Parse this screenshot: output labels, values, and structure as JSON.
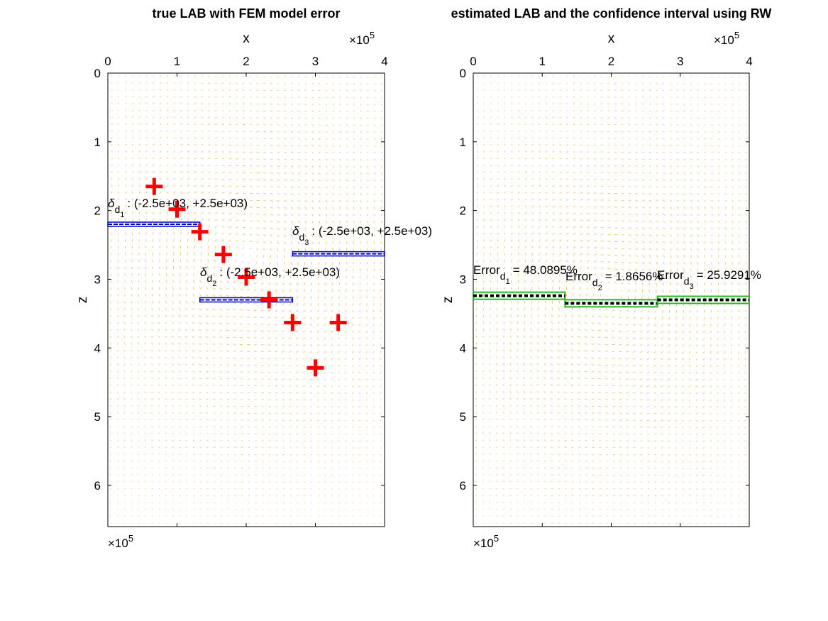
{
  "chart_data": [
    {
      "type": "scatter",
      "title": "true LAB with FEM model error",
      "xlabel": "x",
      "ylabel": "z",
      "x_exponent": "×10",
      "x_exponent_power": "5",
      "y_exponent": "×10",
      "y_exponent_power": "5",
      "xlim": [
        0,
        4
      ],
      "ylim": [
        0,
        6.6
      ],
      "y_reversed": true,
      "x_axis_location": "top",
      "xticks": [
        0,
        1,
        2,
        3,
        4
      ],
      "yticks": [
        0,
        1,
        2,
        3,
        4,
        5,
        6
      ],
      "xtick_labels": [
        "0",
        "1",
        "2",
        "3",
        "4"
      ],
      "ytick_labels": [
        "0",
        "1",
        "2",
        "3",
        "4",
        "5",
        "6"
      ],
      "vector_field": {
        "color": "#e8a317",
        "x_center": 2.0,
        "z_center": 2.7
      },
      "markers": {
        "symbol": "+",
        "color": "#ff0000",
        "points": [
          {
            "x": 0.67,
            "z": 1.65
          },
          {
            "x": 1.0,
            "z": 1.98
          },
          {
            "x": 1.33,
            "z": 2.31
          },
          {
            "x": 1.67,
            "z": 2.64
          },
          {
            "x": 2.0,
            "z": 2.97
          },
          {
            "x": 2.33,
            "z": 3.3
          },
          {
            "x": 2.67,
            "z": 3.63
          },
          {
            "x": 3.33,
            "z": 3.63
          },
          {
            "x": 3.0,
            "z": 4.29
          }
        ]
      },
      "segments": [
        {
          "x0": 0.0,
          "x1": 1.33,
          "z": 2.2,
          "color": "#0000cc",
          "label": {
            "symbol": "δ",
            "sub": "d",
            "subsub": "1",
            "text": ": (-2.5e+03, +2.5e+03)"
          }
        },
        {
          "x0": 1.33,
          "x1": 2.67,
          "z": 3.3,
          "color": "#0000cc",
          "label": {
            "symbol": "δ",
            "sub": "d",
            "subsub": "2",
            "text": ": (-2.5e+03, +2.5e+03)"
          }
        },
        {
          "x0": 2.67,
          "x1": 4.0,
          "z": 2.63,
          "color": "#0000cc",
          "label": {
            "symbol": "δ",
            "sub": "d",
            "subsub": "3",
            "text": ": (-2.5e+03, +2.5e+03)"
          }
        }
      ]
    },
    {
      "type": "line",
      "title": "estimated LAB and the confidence interval using RW",
      "xlabel": "x",
      "ylabel": "z",
      "x_exponent": "×10",
      "x_exponent_power": "5",
      "y_exponent": "×10",
      "y_exponent_power": "5",
      "xlim": [
        0,
        4
      ],
      "ylim": [
        0,
        6.6
      ],
      "y_reversed": true,
      "x_axis_location": "top",
      "xticks": [
        0,
        1,
        2,
        3,
        4
      ],
      "yticks": [
        0,
        1,
        2,
        3,
        4,
        5,
        6
      ],
      "xtick_labels": [
        "0",
        "1",
        "2",
        "3",
        "4"
      ],
      "ytick_labels": [
        "0",
        "1",
        "2",
        "3",
        "4",
        "5",
        "6"
      ],
      "vector_field": {
        "color": "#e8a317",
        "x_center": 2.0,
        "z_center": 3.2
      },
      "segments": [
        {
          "x0": 0.0,
          "x1": 1.33,
          "z": 3.24,
          "color": "#000000",
          "band_color": "#22bb22",
          "label": {
            "prefix": "Error",
            "sub": "d",
            "subsub": "1",
            "text": "= 48.0895%"
          }
        },
        {
          "x0": 1.33,
          "x1": 2.67,
          "z": 3.35,
          "color": "#000000",
          "band_color": "#22bb22",
          "label": {
            "prefix": "Error",
            "sub": "d",
            "subsub": "2",
            "text": "= 1.8656%"
          }
        },
        {
          "x0": 2.67,
          "x1": 4.0,
          "z": 3.3,
          "color": "#000000",
          "band_color": "#22bb22",
          "label": {
            "prefix": "Error",
            "sub": "d",
            "subsub": "3",
            "text": "= 25.9291%"
          }
        }
      ]
    }
  ]
}
